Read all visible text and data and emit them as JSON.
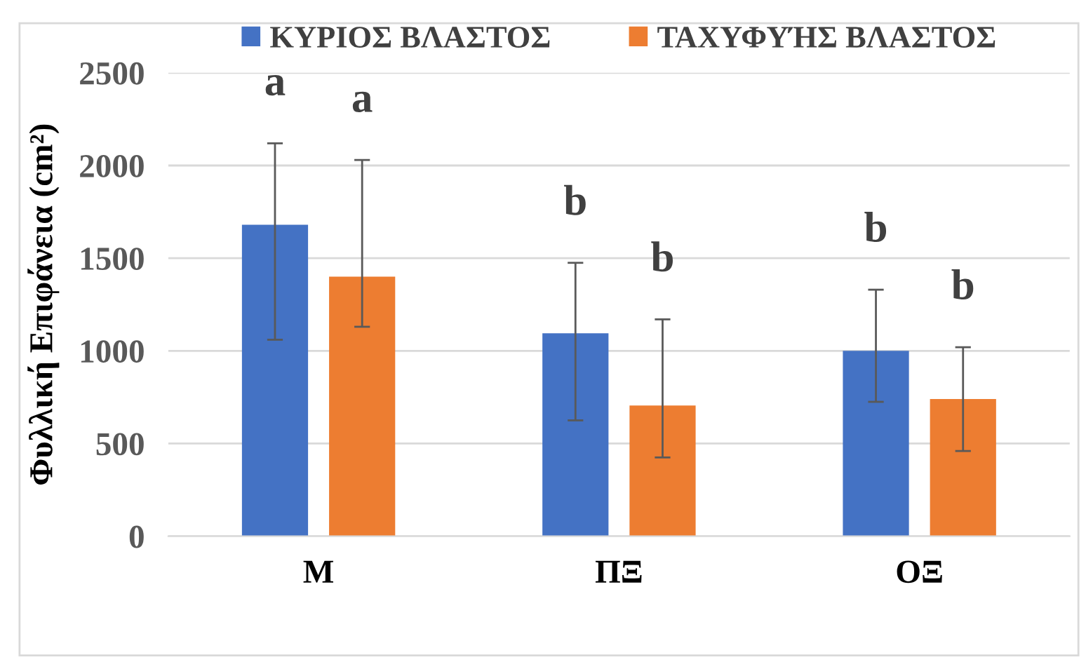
{
  "chart_data": {
    "type": "bar",
    "ylabel": "Φυλλική Επιφάνεια (cm²)",
    "categories": [
      "Μ",
      "ΠΞ",
      "ΟΞ"
    ],
    "series": [
      {
        "name": "ΚΥΡΙΟΣ ΒΛΑΣΤΟΣ",
        "color": "#4472c4",
        "values": [
          1680,
          1095,
          1000
        ],
        "errors": [
          [
            1060,
            2120
          ],
          [
            625,
            1475
          ],
          [
            725,
            1330
          ]
        ]
      },
      {
        "name": "ΤΑΧΥΦΥΉΣ ΒΛΑΣΤΟΣ",
        "color": "#ed7d31",
        "values": [
          1400,
          705,
          740
        ],
        "errors": [
          [
            1130,
            2030
          ],
          [
            425,
            1170
          ],
          [
            460,
            1020
          ]
        ]
      }
    ],
    "annotations": [
      "a",
      "a",
      "b",
      "b",
      "b",
      "b"
    ],
    "ylim": [
      0,
      2500
    ],
    "yticks": [
      0,
      500,
      1000,
      1500,
      2000,
      2500
    ],
    "grid": "y",
    "legend": "top"
  }
}
